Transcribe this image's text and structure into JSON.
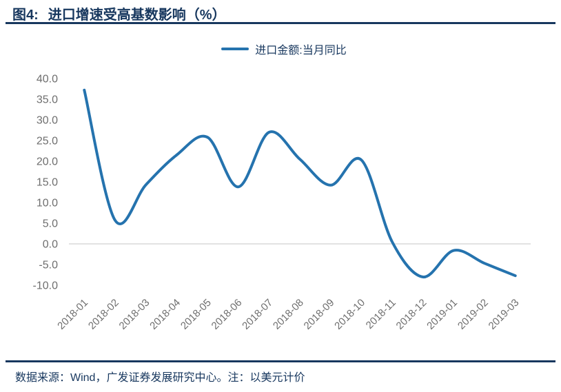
{
  "header": {
    "title_prefix": "图4:",
    "title_text": "进口增速受高基数影响（%）"
  },
  "legend": {
    "label": "进口金额:当月同比"
  },
  "footer": {
    "text": "数据来源：Wind，广发证券发展研究中心。注：以美元计价"
  },
  "colors": {
    "line": "#2573AE",
    "accent_dark": "#17375E",
    "axis_text": "#6E6E6E",
    "zero_gridline": "#D9D9D9"
  },
  "chart_data": {
    "type": "line",
    "title": "图4: 进口增速受高基数影响（%）",
    "legend_entries": [
      "进口金额:当月同比"
    ],
    "legend_position": "top-center",
    "smooth": true,
    "categories": [
      "2018-01",
      "2018-02",
      "2018-03",
      "2018-04",
      "2018-05",
      "2018-06",
      "2018-07",
      "2018-08",
      "2018-09",
      "2018-10",
      "2018-11",
      "2018-12",
      "2019-01",
      "2019-02",
      "2019-03"
    ],
    "series": [
      {
        "name": "进口金额:当月同比",
        "values": [
          37.2,
          5.7,
          14.3,
          21.5,
          25.8,
          13.8,
          27.0,
          20.5,
          14.2,
          20.3,
          0.5,
          -8.0,
          -1.6,
          -4.7,
          -7.7
        ]
      }
    ],
    "xlabel": "",
    "ylabel": "",
    "ylim": [
      -10,
      40
    ],
    "ytick_step": 5,
    "ytick_labels": [
      "40.0",
      "35.0",
      "30.0",
      "25.0",
      "20.0",
      "15.0",
      "10.0",
      "5.0",
      "0.0",
      "-5.0",
      "-10.0"
    ],
    "grid": "zero-line-only"
  }
}
